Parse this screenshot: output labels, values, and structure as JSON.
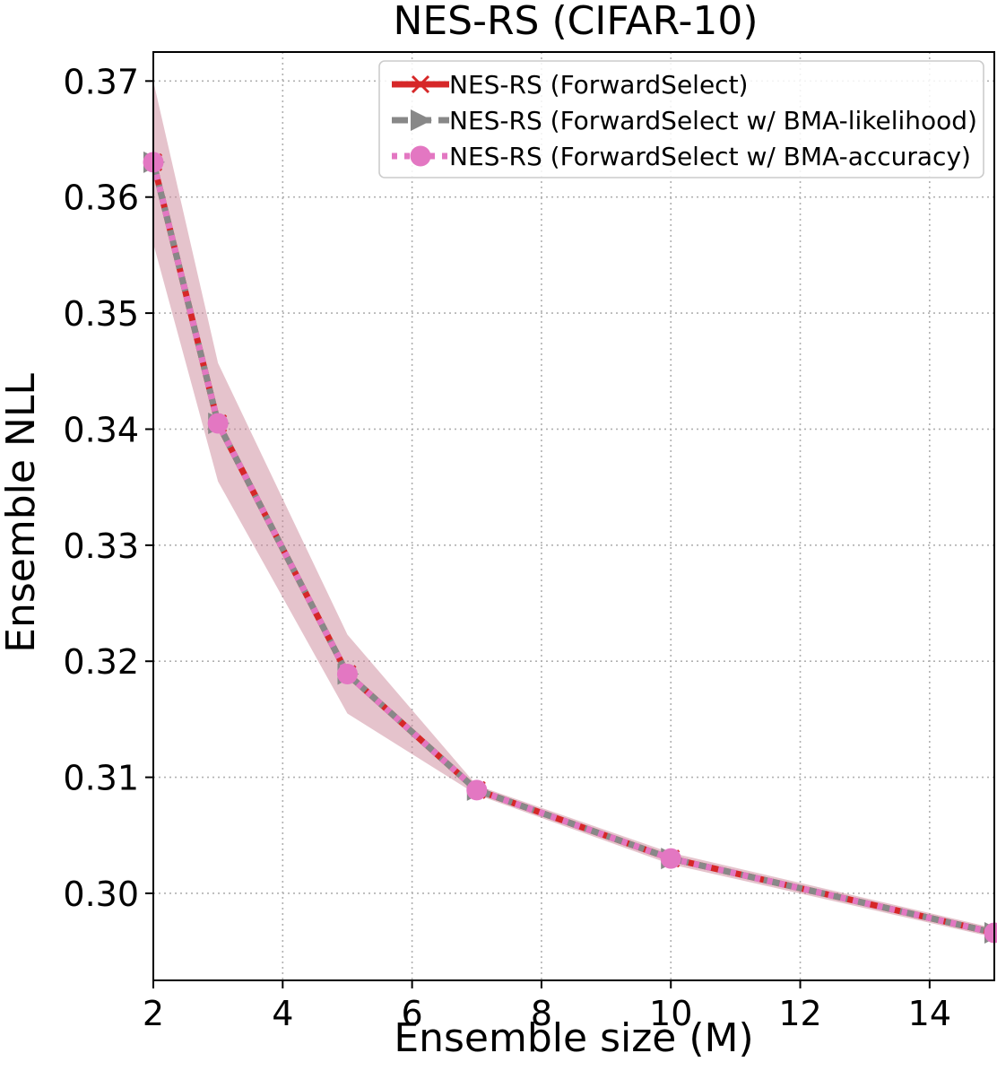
{
  "chart_data": {
    "type": "line",
    "title": "NES-RS (CIFAR-10)",
    "xlabel": "Ensemble size (M)",
    "ylabel": "Ensemble NLL",
    "xlim": [
      2,
      15
    ],
    "ylim": [
      0.2925,
      0.3725
    ],
    "xticks": [
      2,
      4,
      6,
      8,
      10,
      12,
      14
    ],
    "xtick_labels": [
      "2",
      "4",
      "6",
      "8",
      "10",
      "12",
      "14"
    ],
    "yticks": [
      0.3,
      0.31,
      0.32,
      0.33,
      0.34,
      0.35,
      0.36,
      0.37
    ],
    "ytick_labels": [
      "0.30",
      "0.31",
      "0.32",
      "0.33",
      "0.34",
      "0.35",
      "0.36",
      "0.37"
    ],
    "grid": true,
    "legend_position": "top-right",
    "x": [
      2,
      3,
      5,
      7,
      10,
      15
    ],
    "band": {
      "color": "#cc8899",
      "lower": [
        0.356,
        0.3355,
        0.3155,
        0.3085,
        0.3025,
        0.2962
      ],
      "upper": [
        0.37,
        0.3457,
        0.3223,
        0.3093,
        0.3035,
        0.297
      ]
    },
    "series": [
      {
        "name": "NES-RS (ForwardSelect)",
        "color": "#d62728",
        "marker": "x",
        "style": "solid",
        "values": [
          0.363,
          0.3405,
          0.3189,
          0.3089,
          0.303,
          0.2966
        ]
      },
      {
        "name": "NES-RS (ForwardSelect w/ BMA-likelihood)",
        "color": "#888888",
        "marker": "triangle-right",
        "style": "dashed",
        "values": [
          0.363,
          0.3405,
          0.3189,
          0.3089,
          0.303,
          0.2966
        ]
      },
      {
        "name": "NES-RS (ForwardSelect w/ BMA-accuracy)",
        "color": "#e377c2",
        "marker": "circle",
        "style": "dotted",
        "values": [
          0.363,
          0.3405,
          0.3189,
          0.3089,
          0.303,
          0.2966
        ]
      }
    ]
  }
}
